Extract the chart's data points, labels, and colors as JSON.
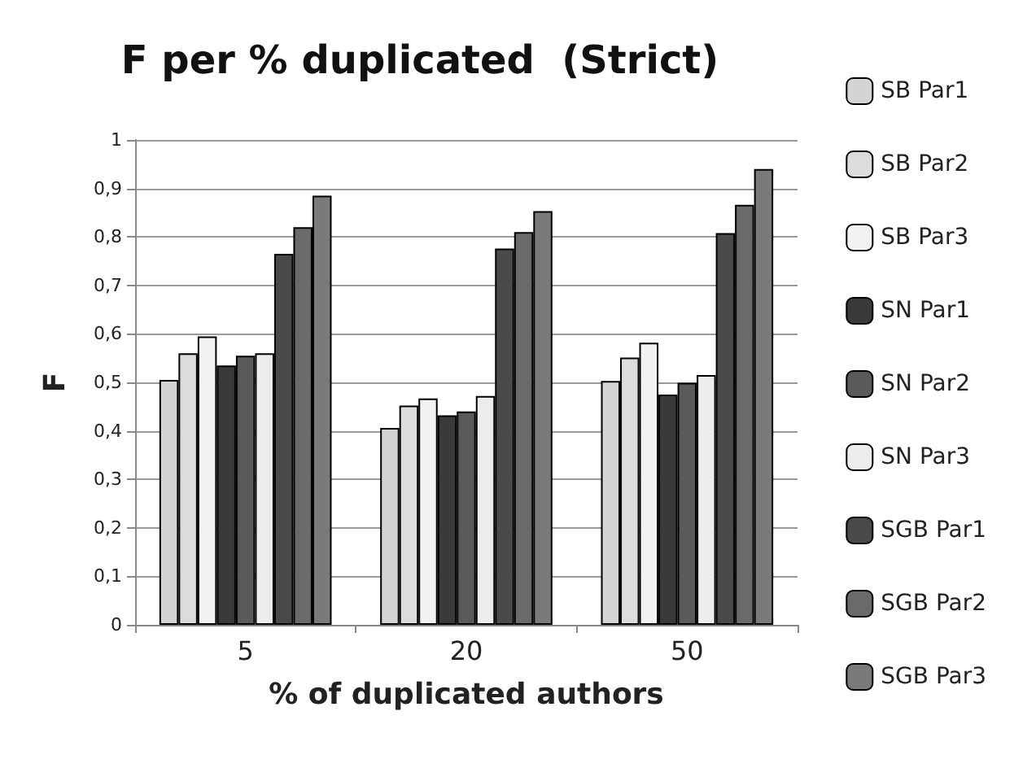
{
  "chart_data": {
    "type": "bar",
    "title": "F per % duplicated  (Strict)",
    "xlabel": "% of duplicated authors",
    "ylabel": "F",
    "categories": [
      "5",
      "20",
      "50"
    ],
    "series": [
      {
        "name": "SB Par1",
        "color": "#d4d4d4",
        "values": [
          0.505,
          0.406,
          0.503
        ]
      },
      {
        "name": "SB Par2",
        "color": "#dcdcdc",
        "values": [
          0.56,
          0.452,
          0.551
        ]
      },
      {
        "name": "SB Par3",
        "color": "#f2f2f2",
        "values": [
          0.595,
          0.467,
          0.582
        ]
      },
      {
        "name": "SN Par1",
        "color": "#3a3a3a",
        "values": [
          0.535,
          0.432,
          0.475
        ]
      },
      {
        "name": "SN Par2",
        "color": "#5a5a5a",
        "values": [
          0.555,
          0.44,
          0.499
        ]
      },
      {
        "name": "SN Par3",
        "color": "#ececec",
        "values": [
          0.56,
          0.472,
          0.515
        ]
      },
      {
        "name": "SGB Par1",
        "color": "#4a4a4a",
        "values": [
          0.765,
          0.776,
          0.808
        ]
      },
      {
        "name": "SGB Par2",
        "color": "#6a6a6a",
        "values": [
          0.82,
          0.81,
          0.866
        ]
      },
      {
        "name": "SGB Par3",
        "color": "#7a7a7a",
        "values": [
          0.885,
          0.853,
          0.94
        ]
      }
    ],
    "ylim": [
      0,
      1
    ],
    "yticks": [
      0,
      {
        "value": 0.1,
        "label": "0,1"
      },
      {
        "value": 0.2,
        "label": "0,2"
      },
      {
        "value": 0.3,
        "label": "0,3"
      },
      {
        "value": 0.4,
        "label": "0,4"
      },
      {
        "value": 0.5,
        "label": "0,5"
      },
      {
        "value": 0.6,
        "label": "0,6"
      },
      {
        "value": 0.7,
        "label": "0,7"
      },
      {
        "value": 0.8,
        "label": "0,8"
      },
      {
        "value": 0.9,
        "label": "0,9"
      },
      1
    ],
    "grid": "y",
    "legend": "right"
  }
}
